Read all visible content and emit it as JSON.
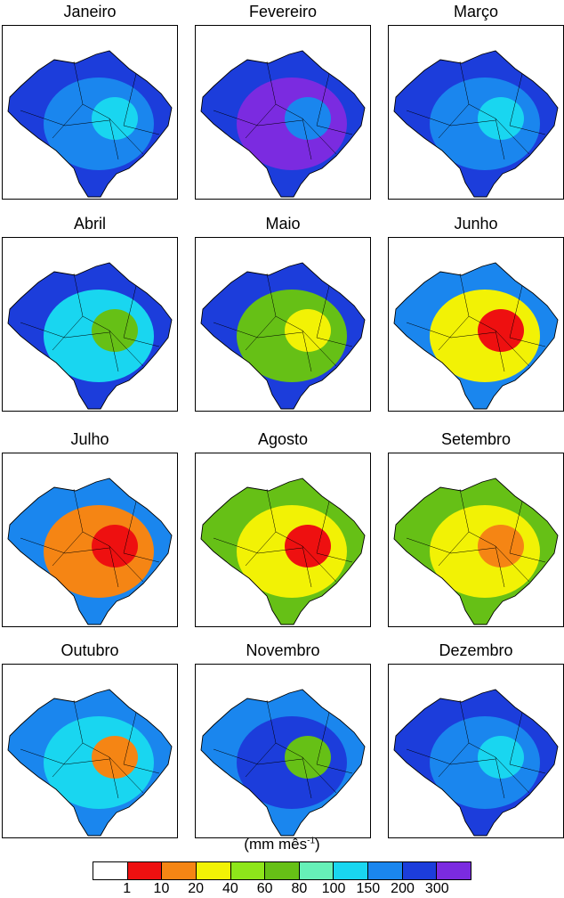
{
  "months": [
    {
      "name": "Janeiro",
      "c1": "#1c3ddb",
      "c2": "#1a86ee",
      "c3": "#19d6f0"
    },
    {
      "name": "Fevereiro",
      "c1": "#1c3ddb",
      "c2": "#7b2be0",
      "c3": "#1a86ee"
    },
    {
      "name": "Março",
      "c1": "#1c3ddb",
      "c2": "#1a86ee",
      "c3": "#19d6f0"
    },
    {
      "name": "Abril",
      "c1": "#1c3ddb",
      "c2": "#19d6f0",
      "c3": "#66c016"
    },
    {
      "name": "Maio",
      "c1": "#1c3ddb",
      "c2": "#66c016",
      "c3": "#f2f205"
    },
    {
      "name": "Junho",
      "c1": "#1a86ee",
      "c2": "#f2f205",
      "c3": "#ee1010"
    },
    {
      "name": "Julho",
      "c1": "#1a86ee",
      "c2": "#f58514",
      "c3": "#ee1010"
    },
    {
      "name": "Agosto",
      "c1": "#66c016",
      "c2": "#f2f205",
      "c3": "#ee1010"
    },
    {
      "name": "Setembro",
      "c1": "#66c016",
      "c2": "#f2f205",
      "c3": "#f58514"
    },
    {
      "name": "Outubro",
      "c1": "#1a86ee",
      "c2": "#19d6f0",
      "c3": "#f58514"
    },
    {
      "name": "Novembro",
      "c1": "#1a86ee",
      "c2": "#1c3ddb",
      "c3": "#66c016"
    },
    {
      "name": "Dezembro",
      "c1": "#1c3ddb",
      "c2": "#1a86ee",
      "c3": "#19d6f0"
    }
  ],
  "legend": {
    "unit_label": "(mm mês",
    "unit_exponent": "-1",
    "unit_close": ")",
    "colors": [
      "#ffffff",
      "#ee1010",
      "#f58514",
      "#f2f205",
      "#8ee61a",
      "#66c016",
      "#66f0b8",
      "#19d6f0",
      "#1a86ee",
      "#1c3ddb",
      "#7b2be0"
    ],
    "ticks": [
      "1",
      "10",
      "20",
      "40",
      "60",
      "80",
      "100",
      "150",
      "200",
      "300"
    ]
  }
}
